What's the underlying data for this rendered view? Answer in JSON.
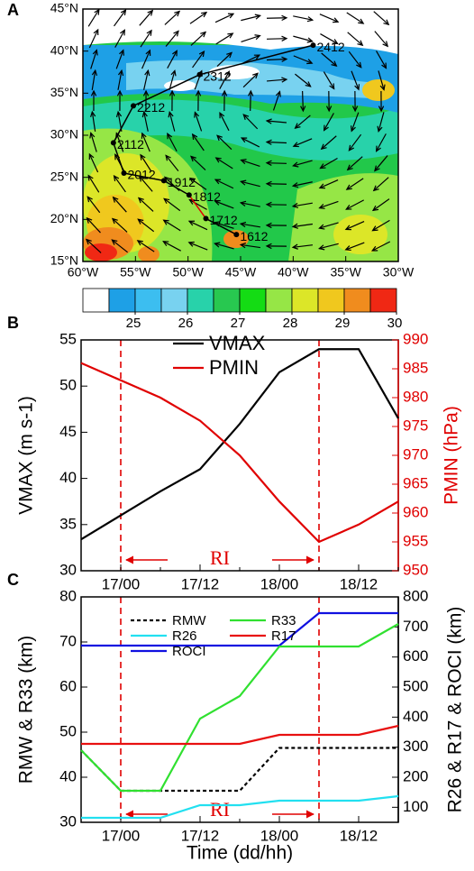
{
  "chart_data": [
    {
      "type": "map",
      "label": "A",
      "xlim": [
        -60,
        -30
      ],
      "ylim": [
        15,
        45
      ],
      "xticks": [
        {
          "value": -60,
          "label": "60°W"
        },
        {
          "value": -55,
          "label": "55°W"
        },
        {
          "value": -50,
          "label": "50°W"
        },
        {
          "value": -45,
          "label": "45°W"
        },
        {
          "value": -40,
          "label": "40°W"
        },
        {
          "value": -35,
          "label": "35°W"
        },
        {
          "value": -30,
          "label": "30°W"
        }
      ],
      "yticks": [
        {
          "value": 15,
          "label": "15°N"
        },
        {
          "value": 20,
          "label": "20°N"
        },
        {
          "value": 25,
          "label": "25°N"
        },
        {
          "value": 30,
          "label": "30°N"
        },
        {
          "value": 35,
          "label": "35°N"
        },
        {
          "value": 40,
          "label": "40°N"
        },
        {
          "value": 45,
          "label": "45°N"
        }
      ],
      "track": {
        "labels": [
          "1612",
          "1712",
          "1812",
          "1912",
          "2012",
          "2112",
          "2212",
          "2312",
          "2412"
        ],
        "lon": [
          -45.4,
          -48.3,
          -49.9,
          -52.3,
          -56.1,
          -57.1,
          -55.2,
          -48.9,
          -38.1
        ],
        "lat": [
          18.2,
          20.1,
          22.9,
          24.6,
          25.5,
          29.1,
          33.5,
          37.2,
          40.7
        ],
        "segment_colors": [
          "#000000",
          "#e00000",
          "#000000",
          "#000000",
          "#000000",
          "#000000",
          "#000000",
          "#000000"
        ]
      },
      "colorbar": {
        "lim": [
          24,
          30
        ],
        "ticks": [
          25,
          26,
          27,
          28,
          29,
          30
        ],
        "colors": [
          "#ffffff",
          "#1ea0e6",
          "#3cbef0",
          "#78d2f0",
          "#28d2aa",
          "#28c850",
          "#14dc14",
          "#96e646",
          "#dce628",
          "#f0c81e",
          "#f08c1e",
          "#f02814"
        ]
      }
    },
    {
      "type": "line",
      "label": "B",
      "categories": [
        null,
        "17/00",
        null,
        "17/12",
        null,
        "18/00",
        null,
        "18/12",
        null
      ],
      "ylabel": "VMAX (m s-1)",
      "y2label": "PMIN (hPa)",
      "y2color": "#e00000",
      "ylim": [
        30,
        55
      ],
      "yticks": [
        30,
        35,
        40,
        45,
        50,
        55
      ],
      "y2lim": [
        950,
        990
      ],
      "y2ticks": [
        950,
        955,
        960,
        965,
        970,
        975,
        980,
        985,
        990
      ],
      "annotation": "RI",
      "series": [
        {
          "name": "VMAX",
          "color": "#000000",
          "values": [
            33.4,
            36.0,
            38.6,
            41.0,
            45.9,
            51.5,
            54,
            54,
            46.5
          ]
        },
        {
          "name": "PMIN",
          "color": "#e00000",
          "axis": "y2",
          "values": [
            986,
            983,
            980,
            976,
            970,
            962,
            955,
            958,
            962
          ]
        }
      ]
    },
    {
      "type": "line",
      "label": "C",
      "categories": [
        null,
        "17/00",
        null,
        "17/12",
        null,
        "18/00",
        null,
        "18/12",
        null
      ],
      "xlabel": "Time (dd/hh)",
      "ylabel": "RMW & R33 (km)",
      "y2label": "R26 & R17 & ROCI (km)",
      "ylim": [
        30,
        80
      ],
      "yticks": [
        30,
        40,
        50,
        60,
        70,
        80
      ],
      "y2lim": [
        50,
        800
      ],
      "y2ticks": [
        100,
        200,
        300,
        400,
        500,
        600,
        700,
        800
      ],
      "annotation": "RI",
      "series": [
        {
          "name": "RMW",
          "color": "#000000",
          "style": "dotted",
          "values": [
            46,
            37,
            37,
            37,
            37,
            46.5,
            46.5,
            46.5,
            46.5
          ]
        },
        {
          "name": "R26",
          "color": "#22e0f0",
          "axis": "y2",
          "values": [
            65,
            65,
            65,
            107,
            107,
            122,
            122,
            122,
            137
          ]
        },
        {
          "name": "ROCI",
          "color": "#1010e0",
          "axis": "y2",
          "values": [
            638,
            638,
            638,
            638,
            638,
            638,
            746,
            746,
            746
          ]
        },
        {
          "name": "R33",
          "color": "#30e030",
          "values": [
            46,
            37,
            37,
            53,
            58,
            69,
            69,
            69,
            74
          ]
        },
        {
          "name": "R17",
          "color": "#e81010",
          "axis": "y2",
          "values": [
            311,
            311,
            311,
            311,
            311,
            341,
            341,
            341,
            371
          ]
        }
      ]
    }
  ]
}
